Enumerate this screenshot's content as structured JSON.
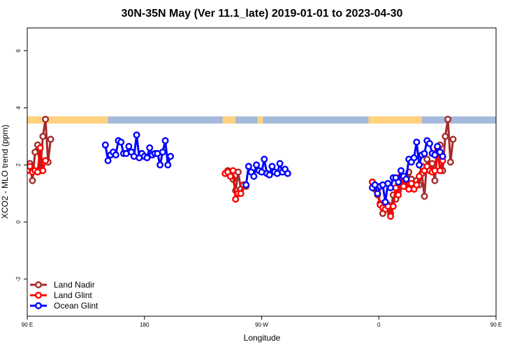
{
  "chart_data": {
    "type": "line",
    "title": "30N-35N May (Ver 11.1_late)   2019-01-01 to 2023-04-30",
    "xlabel": "Longitude",
    "ylabel": "XCO2 - MLO trend (ppm)",
    "xlim": [
      90,
      450
    ],
    "ylim": [
      -3.3,
      6.8
    ],
    "x_ticks": [
      {
        "value": 90,
        "label": "90 E"
      },
      {
        "value": 180,
        "label": "180"
      },
      {
        "value": 270,
        "label": "90 W"
      },
      {
        "value": 360,
        "label": "0"
      },
      {
        "value": 450,
        "label": "90 E"
      },
      {
        "value": 540,
        "label": "180"
      }
    ],
    "y_ticks": [
      {
        "value": -2,
        "label": "-2"
      },
      {
        "value": 0,
        "label": "0"
      },
      {
        "value": 2,
        "label": "2"
      },
      {
        "value": 4,
        "label": "4"
      },
      {
        "value": 6,
        "label": "6"
      }
    ],
    "land_ocean_bar": {
      "y_range": [
        3.45,
        3.7
      ],
      "land_color": "#FFD27F",
      "ocean_color": "#A5B9DC",
      "land_segments": [
        [
          90,
          152
        ],
        [
          240,
          250
        ],
        [
          267,
          271
        ],
        [
          352,
          393
        ],
        [
          460,
          502
        ]
      ]
    },
    "series": [
      {
        "name": "Land Nadir",
        "color": "#A52A2A",
        "points": [
          [
            90,
            1.9
          ],
          [
            92,
            2.05
          ],
          [
            94,
            1.45
          ],
          [
            96,
            2.45
          ],
          [
            98,
            2.7
          ],
          [
            100,
            1.8
          ],
          [
            102,
            3.0
          ],
          [
            104,
            3.6
          ],
          [
            106,
            2.1
          ],
          [
            108,
            2.9
          ],
          [
            242,
            1.7
          ],
          [
            244,
            1.8
          ],
          [
            246,
            1.65
          ],
          [
            248,
            1.5
          ],
          [
            250,
            1.1
          ],
          [
            252,
            1.75
          ],
          [
            254,
            1.15
          ],
          [
            256,
            1.3
          ],
          [
            258,
            1.25
          ],
          [
            355,
            1.4
          ],
          [
            357,
            1.15
          ],
          [
            359,
            0.95
          ],
          [
            361,
            0.65
          ],
          [
            363,
            0.3
          ],
          [
            365,
            0.6
          ],
          [
            367,
            0.6
          ],
          [
            369,
            0.3
          ],
          [
            371,
            0.95
          ],
          [
            373,
            0.8
          ],
          [
            375,
            1.1
          ],
          [
            377,
            1.25
          ],
          [
            379,
            1.4
          ],
          [
            381,
            1.6
          ],
          [
            383,
            1.75
          ],
          [
            385,
            1.5
          ],
          [
            387,
            1.35
          ],
          [
            389,
            1.45
          ],
          [
            391,
            1.3
          ],
          [
            393,
            1.7
          ],
          [
            395,
            0.9
          ],
          [
            397,
            2.2
          ],
          [
            399,
            2.0
          ],
          [
            401,
            2.05
          ],
          [
            403,
            1.45
          ],
          [
            405,
            2.45
          ],
          [
            407,
            2.7
          ],
          [
            409,
            1.8
          ],
          [
            411,
            3.0
          ],
          [
            413,
            3.6
          ],
          [
            415,
            2.1
          ],
          [
            417,
            2.9
          ]
        ]
      },
      {
        "name": "Land Glint",
        "color": "#FF0000",
        "points": [
          [
            90,
            1.8
          ],
          [
            92,
            1.95
          ],
          [
            94,
            1.75
          ],
          [
            96,
            1.8
          ],
          [
            98,
            1.75
          ],
          [
            100,
            2.6
          ],
          [
            102,
            1.8
          ],
          [
            104,
            2.15
          ],
          [
            242,
            1.7
          ],
          [
            244,
            1.75
          ],
          [
            246,
            1.6
          ],
          [
            248,
            1.8
          ],
          [
            250,
            0.8
          ],
          [
            252,
            1.0
          ],
          [
            254,
            1.0
          ],
          [
            256,
            1.3
          ],
          [
            258,
            1.3
          ],
          [
            355,
            1.4
          ],
          [
            357,
            1.2
          ],
          [
            359,
            1.15
          ],
          [
            361,
            0.6
          ],
          [
            363,
            0.5
          ],
          [
            365,
            0.45
          ],
          [
            367,
            0.55
          ],
          [
            369,
            0.2
          ],
          [
            371,
            0.55
          ],
          [
            373,
            1.2
          ],
          [
            375,
            0.95
          ],
          [
            377,
            1.6
          ],
          [
            379,
            1.25
          ],
          [
            381,
            1.45
          ],
          [
            383,
            1.15
          ],
          [
            385,
            1.35
          ],
          [
            387,
            1.15
          ],
          [
            389,
            1.3
          ],
          [
            391,
            1.6
          ],
          [
            393,
            1.95
          ],
          [
            395,
            1.8
          ],
          [
            397,
            1.95
          ],
          [
            399,
            1.8
          ],
          [
            401,
            1.75
          ],
          [
            403,
            1.8
          ],
          [
            405,
            2.6
          ],
          [
            407,
            1.8
          ],
          [
            409,
            2.15
          ]
        ]
      },
      {
        "name": "Ocean Glint",
        "color": "#0000FF",
        "points": [
          [
            150,
            2.7
          ],
          [
            152,
            2.15
          ],
          [
            154,
            2.35
          ],
          [
            156,
            2.45
          ],
          [
            158,
            2.35
          ],
          [
            160,
            2.85
          ],
          [
            162,
            2.8
          ],
          [
            164,
            2.4
          ],
          [
            166,
            2.4
          ],
          [
            168,
            2.65
          ],
          [
            170,
            2.45
          ],
          [
            172,
            2.3
          ],
          [
            174,
            3.05
          ],
          [
            176,
            2.25
          ],
          [
            178,
            2.4
          ],
          [
            180,
            2.3
          ],
          [
            182,
            2.25
          ],
          [
            184,
            2.6
          ],
          [
            186,
            2.35
          ],
          [
            188,
            2.4
          ],
          [
            190,
            2.4
          ],
          [
            192,
            2.0
          ],
          [
            194,
            2.45
          ],
          [
            196,
            2.85
          ],
          [
            198,
            2.0
          ],
          [
            200,
            2.3
          ],
          [
            258,
            1.3
          ],
          [
            260,
            1.95
          ],
          [
            262,
            1.75
          ],
          [
            264,
            1.6
          ],
          [
            266,
            2.0
          ],
          [
            268,
            1.8
          ],
          [
            270,
            1.75
          ],
          [
            272,
            2.2
          ],
          [
            274,
            1.7
          ],
          [
            276,
            1.65
          ],
          [
            278,
            1.95
          ],
          [
            280,
            1.75
          ],
          [
            282,
            1.7
          ],
          [
            284,
            2.05
          ],
          [
            286,
            1.75
          ],
          [
            288,
            1.85
          ],
          [
            290,
            1.7
          ],
          [
            355,
            1.2
          ],
          [
            357,
            1.3
          ],
          [
            359,
            1.0
          ],
          [
            361,
            1.25
          ],
          [
            363,
            1.3
          ],
          [
            365,
            0.7
          ],
          [
            367,
            1.35
          ],
          [
            369,
            1.2
          ],
          [
            371,
            1.55
          ],
          [
            373,
            1.55
          ],
          [
            375,
            1.4
          ],
          [
            377,
            1.8
          ],
          [
            379,
            1.6
          ],
          [
            381,
            1.5
          ],
          [
            383,
            2.2
          ],
          [
            385,
            2.1
          ],
          [
            387,
            2.25
          ],
          [
            389,
            2.8
          ],
          [
            391,
            2.0
          ],
          [
            393,
            2.35
          ],
          [
            395,
            2.4
          ],
          [
            397,
            2.85
          ],
          [
            399,
            2.75
          ],
          [
            401,
            2.4
          ],
          [
            403,
            2.35
          ],
          [
            405,
            2.65
          ],
          [
            407,
            2.45
          ],
          [
            409,
            2.3
          ]
        ]
      }
    ],
    "legend": {
      "position": "bottom-left"
    }
  }
}
